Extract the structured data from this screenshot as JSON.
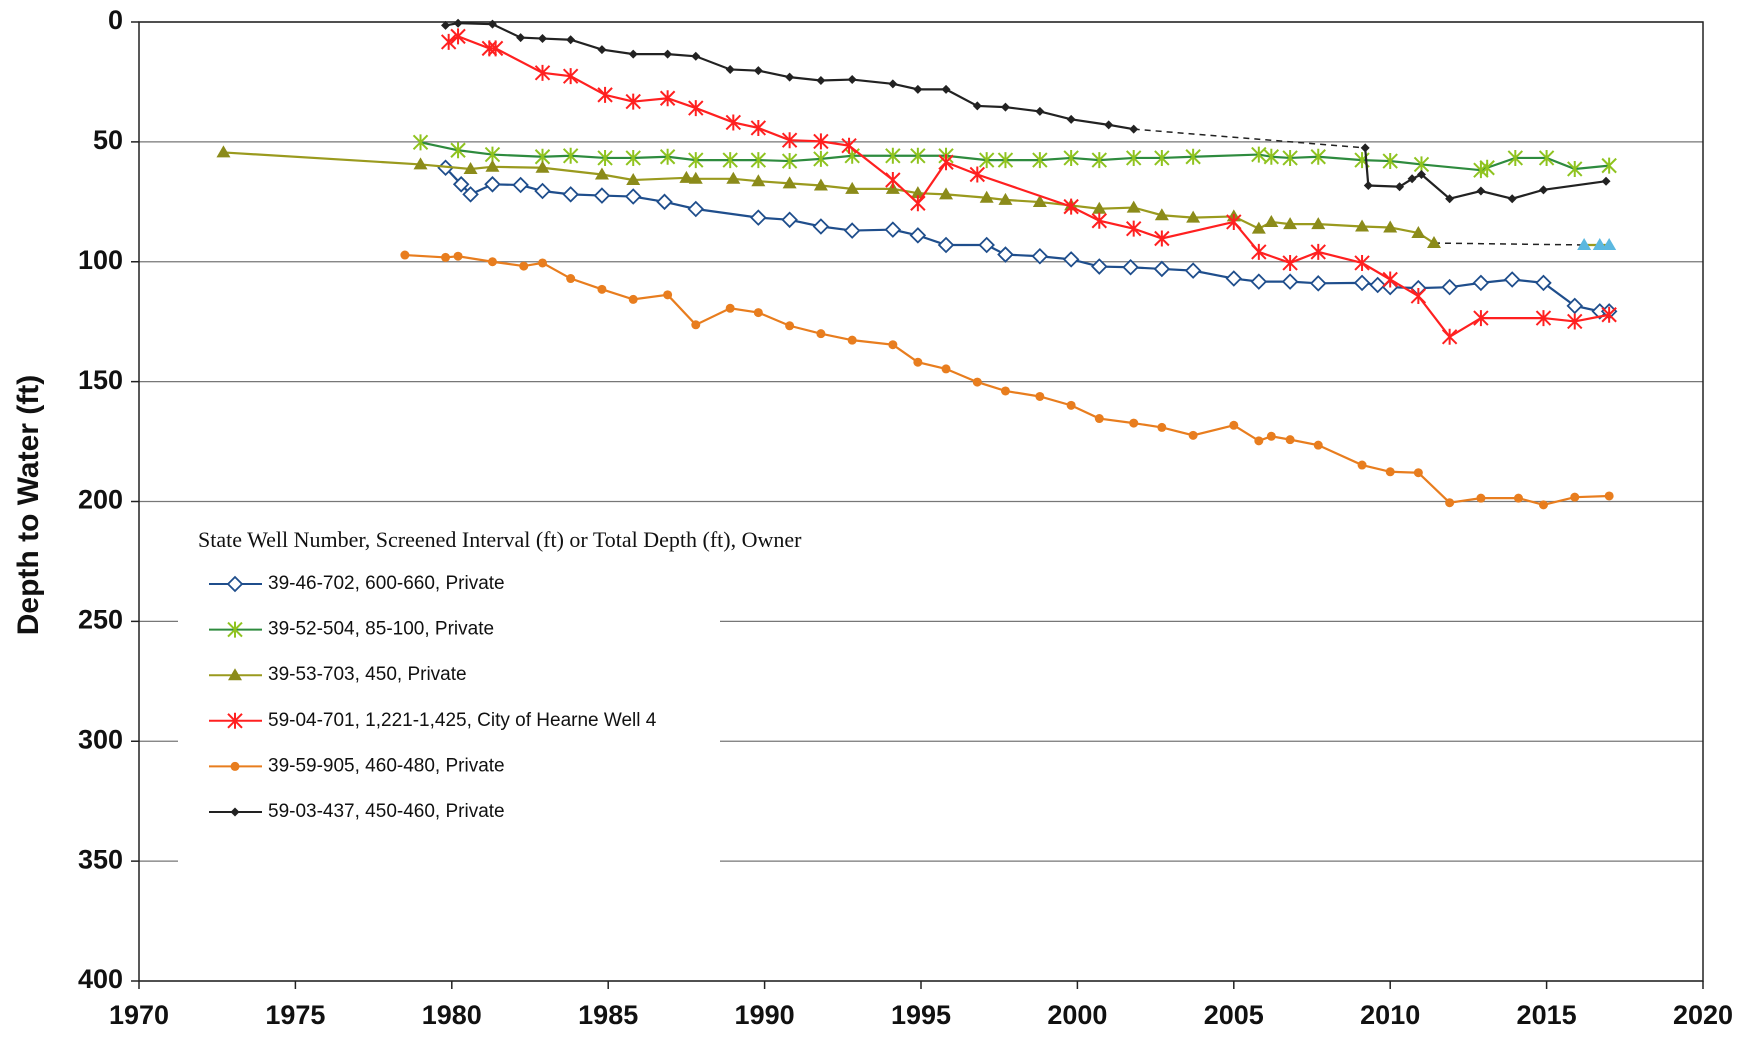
{
  "chart_data": {
    "type": "line",
    "y_axis_label": "Depth to Water (ft)",
    "legend_title": "State Well Number, Screened Interval (ft) or Total Depth (ft), Owner",
    "xlim": [
      1970,
      2020
    ],
    "xticks": [
      1970,
      1975,
      1980,
      1985,
      1990,
      1995,
      2000,
      2005,
      2010,
      2015,
      2020
    ],
    "ylim": [
      0,
      400
    ],
    "yticks": [
      0,
      50,
      100,
      150,
      200,
      250,
      300,
      350,
      400
    ],
    "y_inverted": true,
    "grid": true,
    "series": [
      {
        "name": "39-46-702, 600-660, Private",
        "color": "#1f4e8c",
        "marker": "diamond-open",
        "marker_color": "#1f4e8c",
        "x": [
          1979.8,
          1980.3,
          1980.6,
          1981.3,
          1982.2,
          1982.9,
          1983.8,
          1984.8,
          1985.8,
          1986.8,
          1987.8,
          1989.8,
          1990.8,
          1991.8,
          1992.8,
          1994.1,
          1994.9,
          1995.8,
          1997.1,
          1997.7,
          1998.8,
          1999.8,
          2000.7,
          2001.7,
          2002.7,
          2003.7,
          2005.0,
          2005.8,
          2006.8,
          2007.7,
          2009.1,
          2009.6,
          2010.0,
          2010.9,
          2011.9,
          2012.9,
          2013.9,
          2014.9,
          2015.9,
          2016.7,
          2017.0
        ],
        "values": [
          60.8,
          67.7,
          71.9,
          67.7,
          68,
          70.5,
          71.9,
          72.4,
          72.8,
          75,
          78,
          81.6,
          82.5,
          85.3,
          87,
          86.6,
          89,
          93,
          93,
          97,
          97.7,
          99,
          102,
          102.3,
          103,
          103.7,
          107,
          108.3,
          108.3,
          109,
          108.8,
          109.7,
          110.6,
          111,
          110.6,
          108.8,
          107.4,
          108.8,
          118.4,
          120.7,
          120.7
        ]
      },
      {
        "name": "39-52-504, 85-100, Private",
        "color": "#2e8b3e",
        "marker": "x-star",
        "marker_color": "#8fc31f",
        "x": [
          1979.0,
          1980.2,
          1981.3,
          1982.9,
          1983.8,
          1984.9,
          1985.8,
          1986.9,
          1987.8,
          1988.9,
          1989.8,
          1990.8,
          1991.8,
          1992.8,
          1994.1,
          1994.9,
          1995.8,
          1997.1,
          1997.7,
          1998.8,
          1999.8,
          2000.7,
          2001.8,
          2002.7,
          2003.7,
          2005.8,
          2006.2,
          2006.8,
          2007.7,
          2009.1,
          2010.0,
          2011.0,
          2012.9,
          2013.1,
          2014.0,
          2015.0,
          2015.9,
          2017.0
        ],
        "values": [
          50.2,
          53.5,
          55.3,
          56.2,
          55.8,
          56.7,
          56.7,
          56.2,
          57.6,
          57.6,
          57.6,
          58,
          57.1,
          55.8,
          55.8,
          55.8,
          55.8,
          57.6,
          57.6,
          57.6,
          56.7,
          57.6,
          56.7,
          56.7,
          56.2,
          55.3,
          56.2,
          56.7,
          56.2,
          57.6,
          58,
          59.4,
          61.8,
          60.8,
          56.7,
          56.7,
          61.3,
          59.9
        ]
      },
      {
        "name": "39-53-703, 450, Private",
        "color": "#9a9a1e",
        "marker": "triangle",
        "marker_color": "#8b8b1a",
        "dashed_gap_before": 34,
        "tail_marker_color": "#5bb8e0",
        "x": [
          1972.7,
          1979.0,
          1980.6,
          1981.3,
          1982.9,
          1984.8,
          1985.8,
          1987.5,
          1987.8,
          1989.0,
          1989.8,
          1990.8,
          1991.8,
          1992.8,
          1994.1,
          1994.9,
          1995.8,
          1997.1,
          1997.7,
          1998.8,
          1999.8,
          2000.7,
          2001.8,
          2002.7,
          2003.7,
          2005.0,
          2005.8,
          2006.2,
          2006.8,
          2007.7,
          2009.1,
          2010.0,
          2010.9,
          2011.4,
          2016.2,
          2016.7,
          2017.0
        ],
        "values": [
          54.4,
          59.4,
          61.3,
          60.4,
          60.8,
          63.6,
          65.9,
          65,
          65.4,
          65.4,
          66.4,
          67.3,
          68.2,
          69.6,
          69.6,
          71.4,
          71.9,
          73.3,
          74.2,
          75.1,
          76.5,
          77.9,
          77.4,
          80.6,
          81.6,
          81.1,
          86.2,
          83.4,
          84.3,
          84.3,
          85.3,
          85.7,
          88,
          92.2,
          93,
          93,
          93
        ]
      },
      {
        "name": "59-04-701, 1,221-1,425, City of Hearne Well 4",
        "color": "#ff2020",
        "marker": "star",
        "marker_color": "#ff2020",
        "x": [
          1979.9,
          1980.2,
          1981.2,
          1981.4,
          1982.9,
          1983.8,
          1984.9,
          1985.8,
          1986.9,
          1987.8,
          1989.0,
          1989.8,
          1990.8,
          1991.8,
          1992.7,
          1994.1,
          1994.9,
          1995.8,
          1996.8,
          1999.8,
          2000.7,
          2001.8,
          2002.7,
          2005.0,
          2005.8,
          2006.8,
          2007.7,
          2009.1,
          2010.0,
          2010.9,
          2011.9,
          2012.9,
          2014.9,
          2015.9,
          2017.0
        ],
        "values": [
          8.3,
          6,
          11,
          11,
          21.2,
          22.6,
          30.4,
          33.2,
          31.8,
          35.9,
          41.9,
          44.2,
          49.3,
          49.8,
          51.6,
          65.9,
          75.6,
          58.5,
          63.6,
          77,
          82.9,
          86.2,
          90.3,
          83.4,
          95.9,
          100.5,
          95.9,
          100.5,
          107.4,
          114.3,
          131.3,
          123.5,
          123.5,
          124.9,
          122.1
        ]
      },
      {
        "name": "39-59-905, 460-480, Private",
        "color": "#e87d1e",
        "marker": "circle",
        "marker_color": "#e87d1e",
        "x": [
          1978.5,
          1979.8,
          1980.2,
          1981.3,
          1982.3,
          1982.9,
          1983.8,
          1984.8,
          1985.8,
          1986.9,
          1987.8,
          1988.9,
          1989.8,
          1990.8,
          1991.8,
          1992.8,
          1994.1,
          1994.9,
          1995.8,
          1996.8,
          1997.7,
          1998.8,
          1999.8,
          2000.7,
          2001.8,
          2002.7,
          2003.7,
          2005.0,
          2005.8,
          2006.2,
          2006.8,
          2007.7,
          2009.1,
          2010.0,
          2010.9,
          2011.9,
          2012.9,
          2014.1,
          2014.9,
          2015.9,
          2017.0
        ],
        "values": [
          97.2,
          98.2,
          97.7,
          100,
          101.8,
          100.5,
          107,
          111.5,
          115.7,
          113.8,
          126.3,
          119.4,
          121.2,
          126.7,
          130,
          132.7,
          134.6,
          141.9,
          144.7,
          150.2,
          153.9,
          156.2,
          159.9,
          165.4,
          167.3,
          169.1,
          172.4,
          168.2,
          174.7,
          172.8,
          174.2,
          176.5,
          184.8,
          187.6,
          188,
          200.5,
          198.6,
          198.6,
          201.4,
          198.2,
          197.7
        ]
      },
      {
        "name": "59-03-437, 450-460, Private",
        "color": "#222222",
        "marker": "diamond",
        "marker_color": "#222222",
        "dashed_gap_before": 24,
        "x": [
          1979.8,
          1980.2,
          1981.3,
          1982.2,
          1982.9,
          1983.8,
          1984.8,
          1985.8,
          1986.9,
          1987.8,
          1988.9,
          1989.8,
          1990.8,
          1991.8,
          1992.8,
          1994.1,
          1994.9,
          1995.8,
          1996.8,
          1997.7,
          1998.8,
          1999.8,
          2001.0,
          2001.8,
          2009.2,
          2009.3,
          2010.3,
          2010.7,
          2011.0,
          2011.9,
          2012.9,
          2013.9,
          2014.9,
          2016.9
        ],
        "values": [
          1.4,
          0.5,
          0.9,
          6.5,
          6.9,
          7.4,
          11.5,
          13.4,
          13.4,
          14.3,
          19.8,
          20.3,
          23,
          24.4,
          24,
          25.8,
          28.1,
          28.1,
          35,
          35.5,
          37.3,
          40.6,
          42.9,
          44.7,
          52.5,
          68.2,
          68.7,
          65.4,
          63.6,
          73.7,
          70.5,
          73.7,
          70,
          66.4
        ]
      }
    ]
  }
}
